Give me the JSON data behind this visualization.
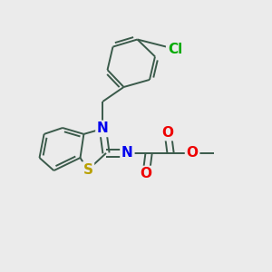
{
  "background_color": "#ebebeb",
  "bond_color": "#3a5a4a",
  "bond_lw": 1.4,
  "label_fontsize": 10,
  "figsize": [
    3.0,
    3.0
  ],
  "dpi": 100,
  "atoms": {
    "S": {
      "label": "S",
      "color": "#b8a000"
    },
    "N1": {
      "label": "N",
      "color": "#0000ee"
    },
    "N2": {
      "label": "N",
      "color": "#0000ee"
    },
    "O1": {
      "label": "O",
      "color": "#ee0000"
    },
    "O2": {
      "label": "O",
      "color": "#ee0000"
    },
    "O3": {
      "label": "O",
      "color": "#ee0000"
    },
    "Cl": {
      "label": "Cl",
      "color": "#00aa00"
    }
  }
}
